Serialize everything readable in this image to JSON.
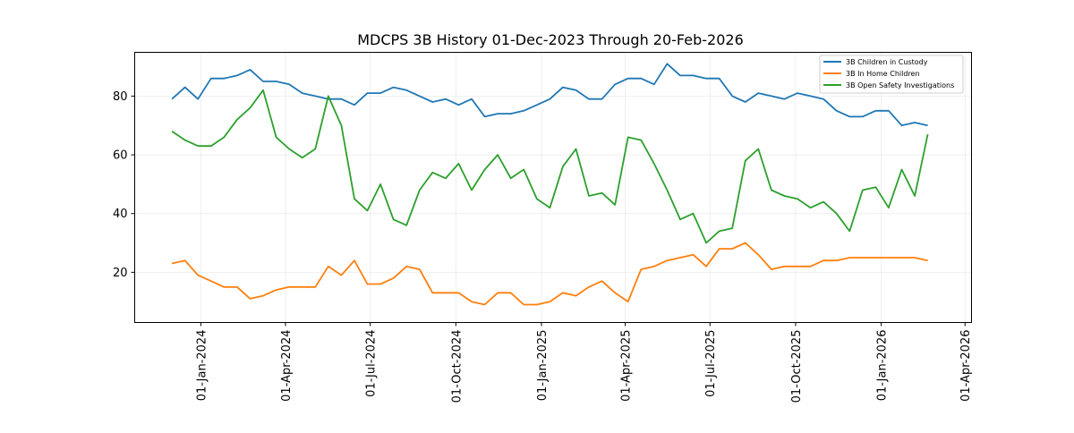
{
  "chart_data": {
    "type": "line",
    "title": "MDCPS 3B History 01-Dec-2023 Through 20-Feb-2026",
    "xlabel": "",
    "ylabel": "",
    "x_start": "2023-12-01",
    "x_step_days": 14,
    "xlim": [
      "2023-10-22",
      "2026-04-08"
    ],
    "ylim": [
      2.9,
      94.9
    ],
    "grid": true,
    "legend_position": "top-right",
    "x_ticks": [
      "01-Jan-2024",
      "01-Apr-2024",
      "01-Jul-2024",
      "01-Oct-2024",
      "01-Jan-2025",
      "01-Apr-2025",
      "01-Jul-2025",
      "01-Oct-2025",
      "01-Jan-2026",
      "01-Apr-2026"
    ],
    "x_tick_dates": [
      "2024-01-01",
      "2024-04-01",
      "2024-07-01",
      "2024-10-01",
      "2025-01-01",
      "2025-04-01",
      "2025-07-01",
      "2025-10-01",
      "2026-01-01",
      "2026-04-01"
    ],
    "y_ticks": [
      "20",
      "40",
      "60",
      "80"
    ],
    "series": [
      {
        "name": "3B Children in Custody",
        "color": "#1f77b4",
        "values": [
          79,
          83,
          79,
          86,
          86,
          87,
          89,
          85,
          85,
          84,
          81,
          80,
          79,
          79,
          77,
          81,
          81,
          83,
          82,
          80,
          78,
          79,
          77,
          79,
          73,
          74,
          74,
          75,
          77,
          79,
          83,
          82,
          79,
          79,
          84,
          86,
          86,
          84,
          91,
          87,
          87,
          86,
          86,
          80,
          78,
          81,
          80,
          79,
          81,
          80,
          79,
          75,
          73,
          73,
          75,
          75,
          70,
          71,
          70
        ]
      },
      {
        "name": "3B In Home Children",
        "color": "#ff7f0e",
        "values": [
          23,
          24,
          19,
          17,
          15,
          15,
          11,
          12,
          14,
          15,
          15,
          15,
          22,
          19,
          24,
          16,
          16,
          18,
          22,
          21,
          13,
          13,
          13,
          10,
          9,
          13,
          13,
          9,
          9,
          10,
          13,
          12,
          15,
          17,
          13,
          10,
          21,
          22,
          24,
          25,
          26,
          22,
          28,
          28,
          30,
          26,
          21,
          22,
          22,
          22,
          24,
          24,
          25,
          25,
          25,
          25,
          25,
          25,
          24
        ]
      },
      {
        "name": "3B Open Safety Investigations",
        "color": "#2ca02c",
        "values": [
          68,
          65,
          63,
          63,
          66,
          72,
          76,
          82,
          66,
          62,
          59,
          62,
          80,
          70,
          45,
          41,
          50,
          38,
          36,
          48,
          54,
          52,
          57,
          48,
          55,
          60,
          52,
          55,
          45,
          42,
          56,
          62,
          46,
          47,
          43,
          66,
          65,
          57,
          48,
          38,
          40,
          30,
          34,
          35,
          58,
          62,
          48,
          46,
          45,
          42,
          44,
          40,
          34,
          48,
          49,
          42,
          55,
          46,
          67
        ]
      }
    ]
  }
}
